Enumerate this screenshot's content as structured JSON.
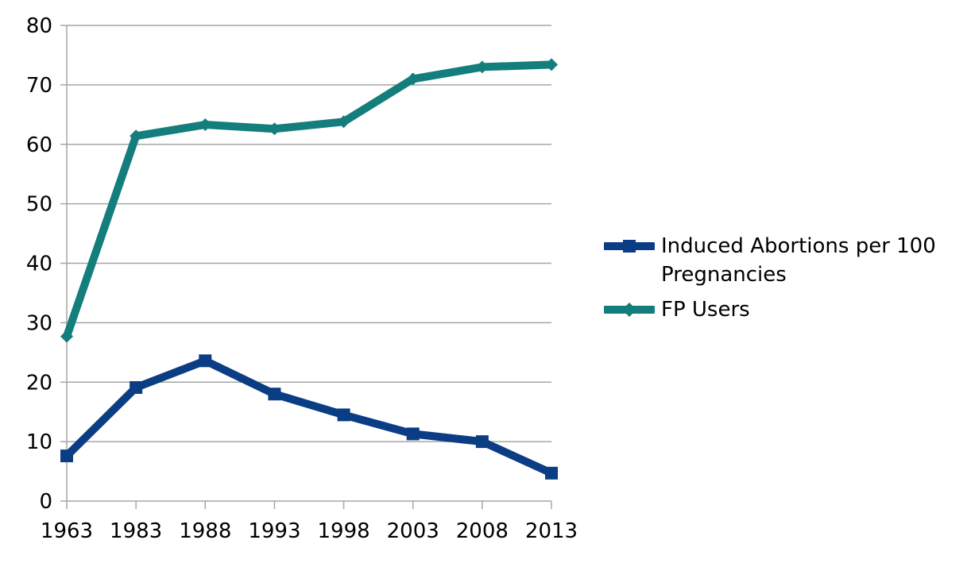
{
  "chart_data": {
    "type": "line",
    "title": "",
    "xlabel": "",
    "ylabel": "",
    "categories": [
      "1963",
      "1983",
      "1988",
      "1993",
      "1998",
      "2003",
      "2008",
      "2013"
    ],
    "ylim": [
      0,
      80
    ],
    "yticks": [
      "0",
      "10",
      "20",
      "30",
      "40",
      "50",
      "60",
      "70",
      "80"
    ],
    "grid": true,
    "legend_position": "right",
    "series": [
      {
        "name": "Induced Abortions per 100 Pregnancies",
        "color": "#0B3D84",
        "marker": "square",
        "values": [
          7.6,
          19.1,
          23.6,
          18.0,
          14.5,
          11.3,
          10.0,
          4.7
        ]
      },
      {
        "name": "FP Users",
        "color": "#137E7B",
        "marker": "diamond",
        "values": [
          27.7,
          61.4,
          63.3,
          62.6,
          63.8,
          71.0,
          73.0,
          73.4
        ]
      }
    ]
  }
}
